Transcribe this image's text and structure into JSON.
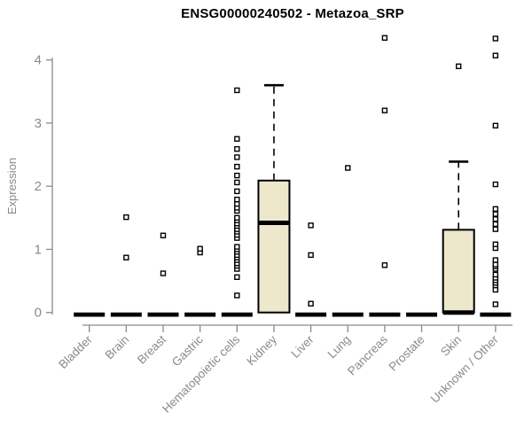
{
  "chart_data": {
    "type": "boxplot",
    "title": "ENSG00000240502 - Metazoa_SRP",
    "ylabel": "Expression",
    "xlabel": "",
    "ylim": [
      0,
      4.4
    ],
    "yticks": [
      0,
      1,
      2,
      3,
      4
    ],
    "grid": false,
    "x_label_rotation": 45,
    "categories": [
      "Bladder",
      "Brain",
      "Breast",
      "Gastric",
      "Hematopoietic cells",
      "Kidney",
      "Liver",
      "Lung",
      "Pancreas",
      "Prostate",
      "Skin",
      "Unknown / Other"
    ],
    "boxes": [
      {
        "category": "Bladder",
        "q1": 0,
        "median": 0,
        "q3": 0,
        "whisker_low": 0,
        "whisker_high": 0,
        "outliers": []
      },
      {
        "category": "Brain",
        "q1": 0,
        "median": 0,
        "q3": 0,
        "whisker_low": 0,
        "whisker_high": 0,
        "outliers": [
          0.87,
          1.51
        ]
      },
      {
        "category": "Breast",
        "q1": 0,
        "median": 0,
        "q3": 0,
        "whisker_low": 0,
        "whisker_high": 0,
        "outliers": [
          0.62,
          1.22
        ]
      },
      {
        "category": "Gastric",
        "q1": 0,
        "median": 0,
        "q3": 0,
        "whisker_low": 0,
        "whisker_high": 0,
        "outliers": [
          0.95,
          1.01
        ]
      },
      {
        "category": "Hematopoietic cells",
        "q1": 0,
        "median": 0,
        "q3": 0,
        "whisker_low": 0,
        "whisker_high": 0,
        "outliers": [
          0.27,
          0.56,
          0.69,
          0.74,
          0.78,
          0.83,
          0.87,
          0.91,
          0.96,
          1.0,
          1.04,
          1.18,
          1.23,
          1.28,
          1.32,
          1.37,
          1.41,
          1.46,
          1.5,
          1.61,
          1.66,
          1.72,
          1.79,
          1.92,
          2.06,
          2.17,
          2.31,
          2.46,
          2.59,
          2.75,
          3.52
        ]
      },
      {
        "category": "Kidney",
        "q1": 0,
        "median": 1.42,
        "q3": 2.09,
        "whisker_low": 0,
        "whisker_high": 3.6,
        "outliers": []
      },
      {
        "category": "Liver",
        "q1": 0,
        "median": 0,
        "q3": 0,
        "whisker_low": 0,
        "whisker_high": 0,
        "outliers": [
          0.14,
          0.91,
          1.38
        ]
      },
      {
        "category": "Lung",
        "q1": 0,
        "median": 0,
        "q3": 0,
        "whisker_low": 0,
        "whisker_high": 0,
        "outliers": [
          2.29
        ]
      },
      {
        "category": "Pancreas",
        "q1": 0,
        "median": 0,
        "q3": 0,
        "whisker_low": 0,
        "whisker_high": 0,
        "outliers": [
          0.75,
          3.2,
          4.35
        ]
      },
      {
        "category": "Prostate",
        "q1": 0,
        "median": 0,
        "q3": 0,
        "whisker_low": 0,
        "whisker_high": 0,
        "outliers": []
      },
      {
        "category": "Skin",
        "q1": 0,
        "median": 0,
        "q3": 1.31,
        "whisker_low": 0,
        "whisker_high": 2.39,
        "outliers": [
          3.9
        ]
      },
      {
        "category": "Unknown / Other",
        "q1": 0,
        "median": 0,
        "q3": 0,
        "whisker_low": 0,
        "whisker_high": 0,
        "outliers": [
          0.13,
          0.36,
          0.43,
          0.47,
          0.51,
          0.55,
          0.6,
          0.69,
          0.73,
          0.76,
          0.83,
          1.02,
          1.08,
          1.32,
          1.4,
          1.48,
          1.56,
          1.64,
          2.03,
          2.96,
          4.07,
          4.34
        ]
      }
    ],
    "colors": {
      "background": "#ffffff",
      "box_fill": "#EDE8CC",
      "box_border": "#000000",
      "median": "#000000",
      "whisker": "#000000",
      "outlier_stroke": "#000000",
      "outlier_fill": "#ffffff",
      "axis": "#8a8a8a",
      "tick_label": "#8a8a8a",
      "title": "#000000"
    }
  }
}
